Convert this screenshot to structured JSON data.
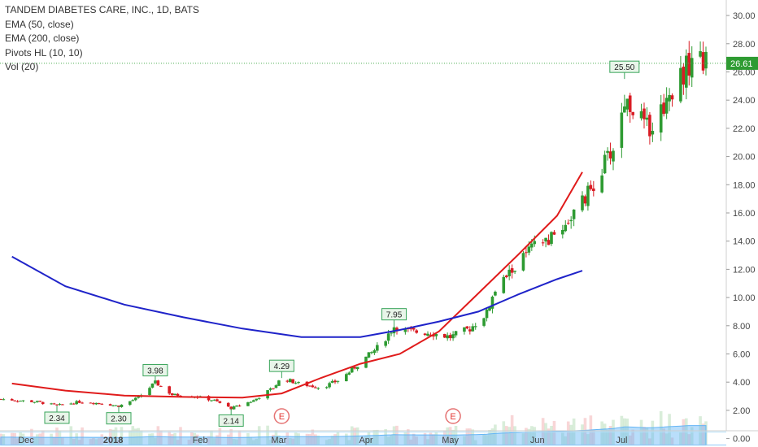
{
  "legend": {
    "symbol": "TANDEM DIABETES CARE, INC., 1D, BATS",
    "ema50": "EMA (50, close)",
    "ema200": "EMA (200, close)",
    "pivots": "Pivots HL (10, 10)",
    "vol": "Vol (20)"
  },
  "last_price_label": "26.61",
  "colors": {
    "up": "#2e9b32",
    "down": "#d91c24",
    "ema50": "#e01b1b",
    "ema200": "#1f23c9",
    "pivot_bg": "#e8f5e9",
    "pivot_border": "#3aa55b",
    "volume_avg": "#9bd3f2",
    "current_line": "#4caf50"
  },
  "earnings_markers": [
    "E",
    "E"
  ],
  "chart_data": {
    "type": "candlestick",
    "title": "TANDEM DIABETES CARE, INC., 1D, BATS",
    "y_ticks": [
      "30.00",
      "28.00",
      "26.00",
      "24.00",
      "22.00",
      "20.00",
      "18.00",
      "16.00",
      "14.00",
      "12.00",
      "10.00",
      "8.00",
      "6.00",
      "4.00",
      "2.00",
      "0.00"
    ],
    "x_labels": [
      "Dec",
      "2018",
      "Feb",
      "Mar",
      "Apr",
      "May",
      "Jun",
      "Jul"
    ],
    "ylim": [
      -0.6,
      31.1
    ],
    "last_price": 26.61,
    "candle_anchors": [
      [
        "Nov 22",
        2.8
      ],
      [
        "Dec 5",
        2.6
      ],
      [
        "Dec 12",
        2.34
      ],
      [
        "Dec 20",
        2.6
      ],
      [
        "Dec 28",
        2.5
      ],
      [
        "Jan 3",
        2.3
      ],
      [
        "Jan 10",
        2.9
      ],
      [
        "Jan 16",
        3.98
      ],
      [
        "Jan 22",
        3.1
      ],
      [
        "Jan 30",
        3.0
      ],
      [
        "Feb 6",
        2.7
      ],
      [
        "Feb 12",
        2.14
      ],
      [
        "Feb 20",
        2.7
      ],
      [
        "Feb 27",
        3.6
      ],
      [
        "Mar 2",
        4.29
      ],
      [
        "Mar 8",
        3.9
      ],
      [
        "Mar 16",
        3.6
      ],
      [
        "Mar 23",
        4.2
      ],
      [
        "Mar 30",
        5.4
      ],
      [
        "Apr 6",
        6.6
      ],
      [
        "Apr 11",
        7.95
      ],
      [
        "Apr 16",
        7.6
      ],
      [
        "Apr 24",
        7.5
      ],
      [
        "May 1",
        7.2
      ],
      [
        "May 8",
        7.8
      ],
      [
        "May 14",
        8.9
      ],
      [
        "May 16",
        10.0
      ],
      [
        "May 21",
        11.5
      ],
      [
        "May 30",
        13.5
      ],
      [
        "Jun 6",
        14.2
      ],
      [
        "Jun 12",
        15.5
      ],
      [
        "Jun 18",
        17.0
      ],
      [
        "Jun 25",
        19.5
      ],
      [
        "Jun 29",
        21.0
      ],
      [
        "Jul 2",
        24.0
      ],
      [
        "Jul 5",
        23.5
      ],
      [
        "Jul 10",
        22.0
      ],
      [
        "Jul 13",
        22.5
      ],
      [
        "Jul 18",
        24.5
      ],
      [
        "Jul 24",
        26.3
      ],
      [
        "Jul 27",
        27.3
      ],
      [
        "Jul 31",
        26.61
      ]
    ],
    "ema50_points": [
      [
        -5,
        3.9
      ],
      [
        14,
        3.4
      ],
      [
        35,
        3.05
      ],
      [
        56,
        2.95
      ],
      [
        77,
        2.9
      ],
      [
        91,
        3.2
      ],
      [
        105,
        4.3
      ],
      [
        119,
        5.3
      ],
      [
        133,
        6.0
      ],
      [
        147,
        7.6
      ],
      [
        161,
        10.3
      ],
      [
        175,
        13.0
      ],
      [
        189,
        15.8
      ],
      [
        198,
        18.9
      ]
    ],
    "ema200_points": [
      [
        -5,
        12.9
      ],
      [
        14,
        10.8
      ],
      [
        35,
        9.5
      ],
      [
        56,
        8.6
      ],
      [
        77,
        7.8
      ],
      [
        98,
        7.2
      ],
      [
        119,
        7.2
      ],
      [
        133,
        7.7
      ],
      [
        147,
        8.3
      ],
      [
        161,
        9.0
      ],
      [
        175,
        10.2
      ],
      [
        189,
        11.3
      ],
      [
        198,
        11.9
      ]
    ],
    "pivots": [
      {
        "date": "Dec 12",
        "value": 2.34,
        "label": "2.34",
        "kind": "low"
      },
      {
        "date": "Jan 3",
        "value": 2.3,
        "label": "2.30",
        "kind": "low"
      },
      {
        "date": "Jan 16",
        "value": 3.98,
        "label": "3.98",
        "kind": "high"
      },
      {
        "date": "Feb 12",
        "value": 2.14,
        "label": "2.14",
        "kind": "low"
      },
      {
        "date": "Mar 2",
        "value": 4.29,
        "label": "4.29",
        "kind": "high"
      },
      {
        "date": "Apr 11",
        "value": 7.95,
        "label": "7.95",
        "kind": "high"
      },
      {
        "date": "Jul 2",
        "value": 25.5,
        "label": "25.50",
        "kind": "high"
      }
    ],
    "legend_entries": [
      "EMA (50, close)",
      "EMA (200, close)",
      "Pivots HL (10, 10)",
      "Vol (20)"
    ],
    "grid": false
  }
}
